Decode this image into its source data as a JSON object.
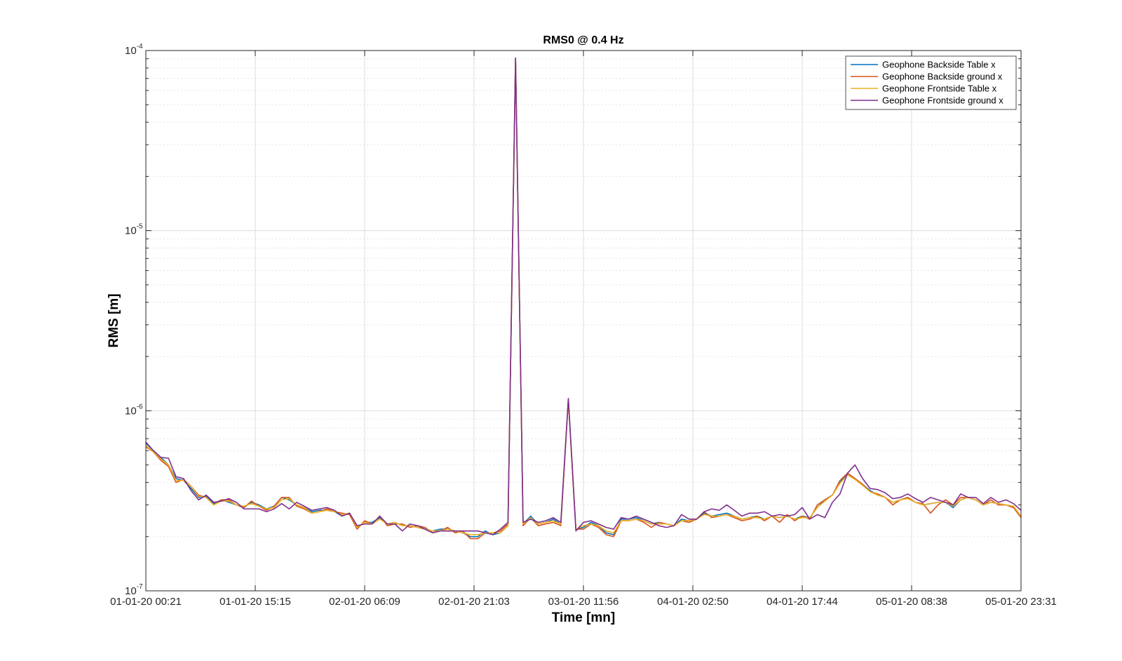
{
  "chart_data": {
    "type": "line",
    "title": "RMS0 @ 0.4 Hz",
    "xlabel": "Time [mn]",
    "ylabel": "RMS [m]",
    "yscale": "log",
    "ylim": [
      1e-07,
      0.0001
    ],
    "y_ticks": [
      {
        "value": 1e-07,
        "base": "10",
        "exp": "-7"
      },
      {
        "value": 1e-06,
        "base": "10",
        "exp": "-6"
      },
      {
        "value": 1e-05,
        "base": "10",
        "exp": "-5"
      },
      {
        "value": 0.0001,
        "base": "10",
        "exp": "-4"
      }
    ],
    "x_tick_labels": [
      "01-01-20 00:21",
      "01-01-20 15:15",
      "02-01-20 06:09",
      "02-01-20 21:03",
      "03-01-20 11:56",
      "04-01-20 02:50",
      "04-01-20 17:44",
      "05-01-20 08:38",
      "05-01-20 23:31"
    ],
    "grid": true,
    "legend_position": "top-right",
    "series": [
      {
        "name": "Geophone Backside Table x",
        "color": "#0072BD",
        "values": [
          6.6e-07,
          6e-07,
          5.5e-07,
          5e-07,
          4.2e-07,
          4.1e-07,
          3.7e-07,
          3.3e-07,
          3.35e-07,
          3.05e-07,
          3.2e-07,
          3.1e-07,
          3e-07,
          2.9e-07,
          3.1e-07,
          3e-07,
          2.85e-07,
          2.95e-07,
          3.3e-07,
          3.2e-07,
          3e-07,
          2.9e-07,
          2.75e-07,
          2.8e-07,
          2.8e-07,
          2.75e-07,
          2.6e-07,
          2.7e-07,
          2.25e-07,
          2.4e-07,
          2.4e-07,
          2.55e-07,
          2.35e-07,
          2.4e-07,
          2.3e-07,
          2.3e-07,
          2.25e-07,
          2.2e-07,
          2.15e-07,
          2.2e-07,
          2.2e-07,
          2.15e-07,
          2.1e-07,
          2e-07,
          2e-07,
          2.15e-07,
          2.05e-07,
          2.1e-07,
          2.3e-07,
          9e-05,
          2.35e-07,
          2.6e-07,
          2.35e-07,
          2.4e-07,
          2.5e-07,
          2.35e-07,
          1.15e-06,
          2.2e-07,
          2.25e-07,
          2.4e-07,
          2.3e-07,
          2.1e-07,
          2.05e-07,
          2.5e-07,
          2.5e-07,
          2.55e-07,
          2.45e-07,
          2.35e-07,
          2.4e-07,
          2.35e-07,
          2.3e-07,
          2.5e-07,
          2.45e-07,
          2.5e-07,
          2.7e-07,
          2.6e-07,
          2.65e-07,
          2.7e-07,
          2.6e-07,
          2.5e-07,
          2.55e-07,
          2.6e-07,
          2.5e-07,
          2.6e-07,
          2.55e-07,
          2.6e-07,
          2.5e-07,
          2.6e-07,
          2.55e-07,
          2.9e-07,
          3.2e-07,
          3.4e-07,
          4e-07,
          4.5e-07,
          4.2e-07,
          3.9e-07,
          3.6e-07,
          3.4e-07,
          3.3e-07,
          3.1e-07,
          3.2e-07,
          3.3e-07,
          3.1e-07,
          3e-07,
          3.05e-07,
          3.1e-07,
          3.1e-07,
          2.9e-07,
          3.2e-07,
          3.3e-07,
          3.2e-07,
          3e-07,
          3.1e-07,
          3.05e-07,
          3e-07,
          2.9e-07,
          2.6e-07
        ]
      },
      {
        "name": "Geophone Backside ground x",
        "color": "#D95319",
        "values": [
          6.3e-07,
          5.9e-07,
          5.3e-07,
          4.9e-07,
          4e-07,
          4.15e-07,
          3.8e-07,
          3.4e-07,
          3.3e-07,
          3e-07,
          3.2e-07,
          3.2e-07,
          3e-07,
          2.9e-07,
          3.15e-07,
          2.95e-07,
          2.8e-07,
          2.95e-07,
          3.3e-07,
          3.3e-07,
          2.95e-07,
          2.85e-07,
          2.7e-07,
          2.75e-07,
          2.85e-07,
          2.75e-07,
          2.7e-07,
          2.65e-07,
          2.2e-07,
          2.45e-07,
          2.35e-07,
          2.6e-07,
          2.3e-07,
          2.35e-07,
          2.35e-07,
          2.25e-07,
          2.3e-07,
          2.25e-07,
          2.1e-07,
          2.15e-07,
          2.25e-07,
          2.1e-07,
          2.15e-07,
          1.95e-07,
          1.95e-07,
          2.1e-07,
          2.1e-07,
          2.15e-07,
          2.35e-07,
          9e-05,
          2.3e-07,
          2.55e-07,
          2.3e-07,
          2.35e-07,
          2.4e-07,
          2.3e-07,
          1.15e-06,
          2.2e-07,
          2.2e-07,
          2.35e-07,
          2.25e-07,
          2.05e-07,
          2e-07,
          2.45e-07,
          2.45e-07,
          2.5e-07,
          2.4e-07,
          2.25e-07,
          2.4e-07,
          2.35e-07,
          2.3e-07,
          2.45e-07,
          2.4e-07,
          2.5e-07,
          2.75e-07,
          2.55e-07,
          2.6e-07,
          2.65e-07,
          2.55e-07,
          2.45e-07,
          2.5e-07,
          2.6e-07,
          2.45e-07,
          2.6e-07,
          2.4e-07,
          2.65e-07,
          2.45e-07,
          2.6e-07,
          2.5e-07,
          3e-07,
          3.2e-07,
          3.4e-07,
          4.1e-07,
          4.5e-07,
          4.2e-07,
          3.9e-07,
          3.55e-07,
          3.45e-07,
          3.3e-07,
          3e-07,
          3.2e-07,
          3.3e-07,
          3.1e-07,
          3.05e-07,
          2.7e-07,
          3e-07,
          3.2e-07,
          3e-07,
          3.3e-07,
          3.3e-07,
          3.2e-07,
          3e-07,
          3.2e-07,
          3e-07,
          3e-07,
          2.9e-07,
          2.55e-07
        ]
      },
      {
        "name": "Geophone Frontside Table x",
        "color": "#EDB120",
        "values": [
          6.4e-07,
          5.9e-07,
          5.4e-07,
          5e-07,
          4.1e-07,
          4.1e-07,
          3.8e-07,
          3.35e-07,
          3.3e-07,
          3e-07,
          3.15e-07,
          3.15e-07,
          3e-07,
          2.95e-07,
          3.05e-07,
          2.95e-07,
          2.85e-07,
          2.9e-07,
          3.2e-07,
          3.25e-07,
          3e-07,
          2.9e-07,
          2.7e-07,
          2.75e-07,
          2.8e-07,
          2.75e-07,
          2.65e-07,
          2.7e-07,
          2.25e-07,
          2.4e-07,
          2.35e-07,
          2.5e-07,
          2.35e-07,
          2.4e-07,
          2.3e-07,
          2.3e-07,
          2.25e-07,
          2.2e-07,
          2.15e-07,
          2.15e-07,
          2.2e-07,
          2.15e-07,
          2.1e-07,
          2.05e-07,
          2.05e-07,
          2.1e-07,
          2.1e-07,
          2.1e-07,
          2.3e-07,
          9e-05,
          2.35e-07,
          2.55e-07,
          2.35e-07,
          2.4e-07,
          2.45e-07,
          2.35e-07,
          1.15e-06,
          2.2e-07,
          2.3e-07,
          2.35e-07,
          2.3e-07,
          2.15e-07,
          2.1e-07,
          2.45e-07,
          2.45e-07,
          2.5e-07,
          2.45e-07,
          2.35e-07,
          2.35e-07,
          2.35e-07,
          2.3e-07,
          2.45e-07,
          2.45e-07,
          2.5e-07,
          2.65e-07,
          2.6e-07,
          2.6e-07,
          2.65e-07,
          2.6e-07,
          2.5e-07,
          2.55e-07,
          2.55e-07,
          2.5e-07,
          2.6e-07,
          2.55e-07,
          2.6e-07,
          2.5e-07,
          2.55e-07,
          2.55e-07,
          2.9e-07,
          3.15e-07,
          3.4e-07,
          3.95e-07,
          4.4e-07,
          4.15e-07,
          3.85e-07,
          3.55e-07,
          3.4e-07,
          3.3e-07,
          3.1e-07,
          3.2e-07,
          3.25e-07,
          3.1e-07,
          3e-07,
          3.05e-07,
          3.1e-07,
          3.1e-07,
          2.95e-07,
          3.2e-07,
          3.3e-07,
          3.2e-07,
          3e-07,
          3.1e-07,
          3.05e-07,
          3e-07,
          2.95e-07,
          2.6e-07
        ]
      },
      {
        "name": "Geophone Frontside ground x",
        "color": "#7E2F8E",
        "values": [
          6.7e-07,
          6e-07,
          5.5e-07,
          5.45e-07,
          4.3e-07,
          4.2e-07,
          3.6e-07,
          3.2e-07,
          3.4e-07,
          3.1e-07,
          3.15e-07,
          3.25e-07,
          3.1e-07,
          2.85e-07,
          2.85e-07,
          2.85e-07,
          2.75e-07,
          2.85e-07,
          3.05e-07,
          2.85e-07,
          3.1e-07,
          2.95e-07,
          2.8e-07,
          2.85e-07,
          2.9e-07,
          2.8e-07,
          2.6e-07,
          2.7e-07,
          2.3e-07,
          2.35e-07,
          2.35e-07,
          2.6e-07,
          2.35e-07,
          2.35e-07,
          2.15e-07,
          2.35e-07,
          2.3e-07,
          2.2e-07,
          2.1e-07,
          2.15e-07,
          2.15e-07,
          2.15e-07,
          2.15e-07,
          2.15e-07,
          2.15e-07,
          2.1e-07,
          2.05e-07,
          2.2e-07,
          2.4e-07,
          9.1e-05,
          2.4e-07,
          2.5e-07,
          2.4e-07,
          2.45e-07,
          2.55e-07,
          2.4e-07,
          1.17e-06,
          2.15e-07,
          2.4e-07,
          2.45e-07,
          2.35e-07,
          2.25e-07,
          2.2e-07,
          2.55e-07,
          2.5e-07,
          2.6e-07,
          2.5e-07,
          2.4e-07,
          2.3e-07,
          2.25e-07,
          2.3e-07,
          2.65e-07,
          2.5e-07,
          2.5e-07,
          2.75e-07,
          2.85e-07,
          2.8e-07,
          3e-07,
          2.8e-07,
          2.6e-07,
          2.7e-07,
          2.7e-07,
          2.75e-07,
          2.6e-07,
          2.65e-07,
          2.6e-07,
          2.65e-07,
          2.9e-07,
          2.5e-07,
          2.65e-07,
          2.55e-07,
          3.1e-07,
          3.45e-07,
          4.5e-07,
          5e-07,
          4.2e-07,
          3.7e-07,
          3.65e-07,
          3.5e-07,
          3.25e-07,
          3.3e-07,
          3.45e-07,
          3.25e-07,
          3.1e-07,
          3.3e-07,
          3.2e-07,
          3.1e-07,
          3e-07,
          3.45e-07,
          3.3e-07,
          3.3e-07,
          3.05e-07,
          3.3e-07,
          3.1e-07,
          3.2e-07,
          3.05e-07,
          2.8e-07
        ]
      }
    ]
  }
}
